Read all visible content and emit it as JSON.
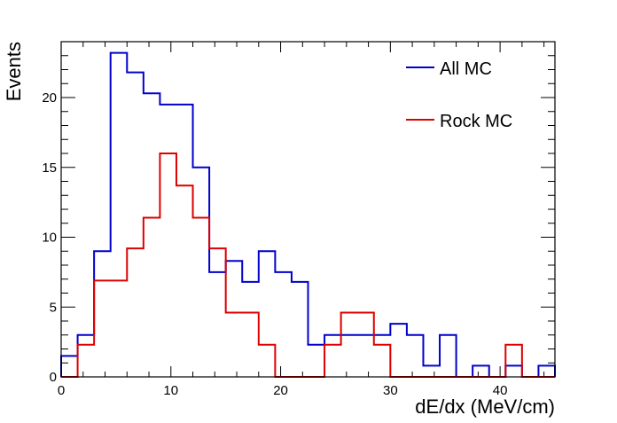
{
  "chart_data": {
    "type": "line",
    "style": "step-histogram",
    "xlabel": "dE/dx (MeV/cm)",
    "ylabel": "Events",
    "xlim": [
      0,
      45
    ],
    "ylim": [
      0,
      24
    ],
    "x_ticks": [
      0,
      10,
      20,
      30,
      40
    ],
    "y_ticks": [
      0,
      5,
      10,
      15,
      20
    ],
    "grid": false,
    "legend_position": "top-right",
    "bin_edges": [
      0,
      1.5,
      3,
      4.5,
      6,
      7.5,
      9,
      10.5,
      12,
      13.5,
      15,
      16.5,
      18,
      19.5,
      21,
      22.5,
      24,
      25.5,
      27,
      28.5,
      30,
      31.5,
      33,
      34.5,
      36,
      37.5,
      39,
      40.5,
      42,
      43.5,
      45
    ],
    "series": [
      {
        "name": "All MC",
        "color": "#0000cc",
        "values": [
          1.5,
          3.0,
          9.0,
          23.2,
          21.8,
          20.3,
          19.5,
          19.5,
          15.0,
          7.5,
          8.3,
          6.8,
          9.0,
          7.5,
          6.8,
          2.3,
          3.0,
          3.0,
          3.0,
          3.0,
          3.8,
          3.0,
          0.8,
          3.0,
          0,
          0.8,
          0,
          0.8,
          0,
          0.8
        ]
      },
      {
        "name": "Rock MC",
        "color": "#dd0000",
        "values": [
          0,
          2.3,
          6.9,
          6.9,
          9.2,
          11.4,
          16.0,
          13.7,
          11.4,
          9.2,
          4.6,
          4.6,
          2.3,
          0,
          0,
          0,
          2.3,
          4.6,
          4.6,
          2.3,
          0,
          0,
          0,
          0,
          0,
          0,
          0,
          2.3,
          0,
          0
        ]
      }
    ]
  }
}
